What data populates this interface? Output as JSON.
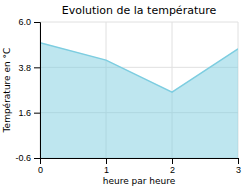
{
  "chart_data": {
    "type": "area",
    "title": "Evolution de la température",
    "xlabel": "heure par heure",
    "ylabel": "Température en °C",
    "x": [
      0,
      1,
      2,
      3
    ],
    "values": [
      5.0,
      4.15,
      2.6,
      4.7
    ],
    "color": "#7dcde0",
    "xlim": [
      0,
      3
    ],
    "ylim": [
      -0.6,
      6.0
    ],
    "xticks": [
      0,
      1,
      2,
      3
    ],
    "yticks": [
      -0.6,
      1.6,
      3.8,
      {
        "value": 6.0,
        "label": "6.0"
      }
    ],
    "grid": true
  }
}
